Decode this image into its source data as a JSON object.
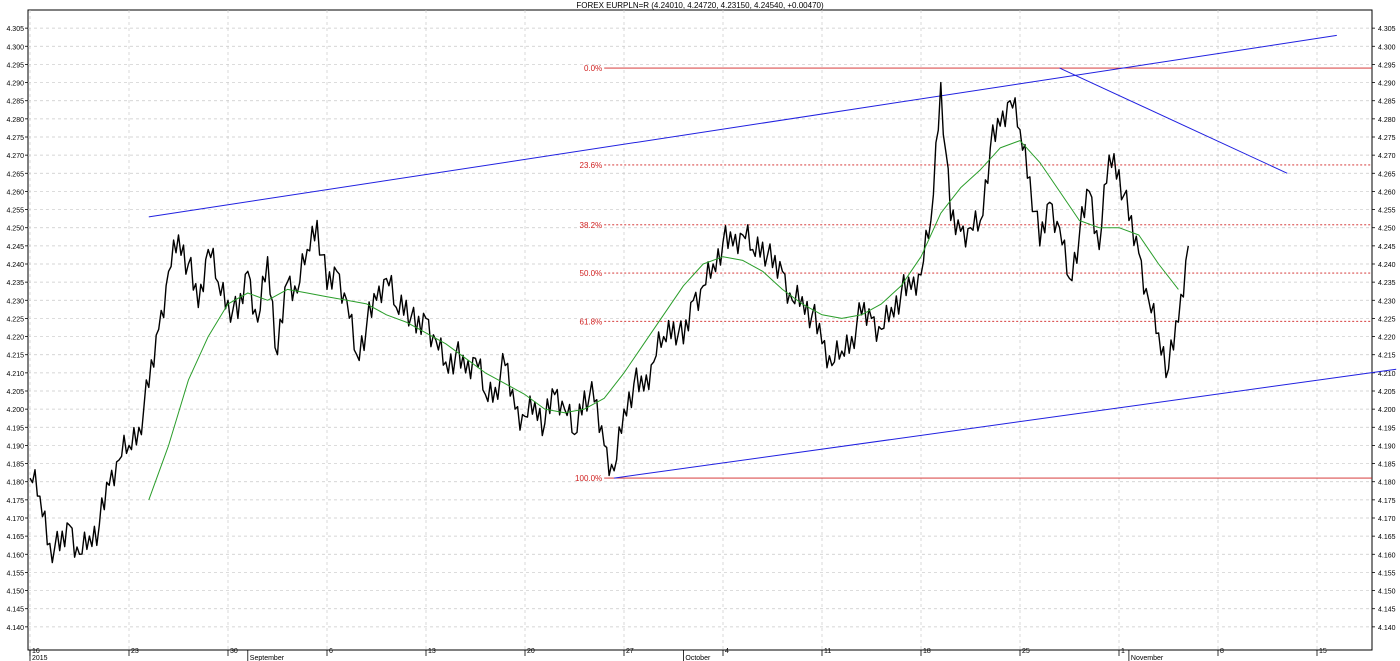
{
  "chart_data": {
    "type": "line",
    "title": "FOREX EURPLN=R (4.24010, 4.24720, 4.23150, 4.24540, +0.00470)",
    "ylim": [
      4.135,
      4.31
    ],
    "y_ticks": [
      "4.140",
      "4.145",
      "4.150",
      "4.155",
      "4.160",
      "4.165",
      "4.170",
      "4.175",
      "4.180",
      "4.185",
      "4.190",
      "4.195",
      "4.200",
      "4.205",
      "4.210",
      "4.215",
      "4.220",
      "4.225",
      "4.230",
      "4.235",
      "4.240",
      "4.245",
      "4.250",
      "4.255",
      "4.260",
      "4.265",
      "4.270",
      "4.275",
      "4.280",
      "4.285",
      "4.290",
      "4.295",
      "4.300",
      "4.305"
    ],
    "x_days": 117,
    "x_ticks": [
      {
        "day": 0,
        "label": "16"
      },
      {
        "day": 10,
        "label": "23"
      },
      {
        "day": 20,
        "label": "30"
      },
      {
        "day": 30,
        "label": "6"
      },
      {
        "day": 40,
        "label": "13"
      },
      {
        "day": 50,
        "label": "20"
      },
      {
        "day": 60,
        "label": "27"
      },
      {
        "day": 70,
        "label": "4"
      },
      {
        "day": 80,
        "label": "11"
      },
      {
        "day": 90,
        "label": "18"
      },
      {
        "day": 100,
        "label": "25"
      },
      {
        "day": 110,
        "label": "1"
      },
      {
        "day": 120,
        "label": "8"
      },
      {
        "day": 130,
        "label": "15"
      }
    ],
    "x_period_labels": [
      {
        "day": 0,
        "label": "2015"
      },
      {
        "day": 22,
        "label": "September"
      },
      {
        "day": 66,
        "label": "October"
      },
      {
        "day": 111,
        "label": "November"
      }
    ],
    "series": [
      {
        "color": "#000000",
        "points": [
          [
            0,
            4.181
          ],
          [
            1,
            4.176
          ],
          [
            2,
            4.163
          ],
          [
            3,
            4.161
          ],
          [
            4,
            4.168
          ],
          [
            5,
            4.16
          ],
          [
            6,
            4.165
          ],
          [
            7,
            4.168
          ],
          [
            8,
            4.179
          ],
          [
            9,
            4.186
          ],
          [
            10,
            4.19
          ],
          [
            11,
            4.195
          ],
          [
            12,
            4.206
          ],
          [
            13,
            4.222
          ],
          [
            14,
            4.238
          ],
          [
            15,
            4.248
          ],
          [
            16,
            4.24
          ],
          [
            17,
            4.228
          ],
          [
            18,
            4.244
          ],
          [
            19,
            4.235
          ],
          [
            20,
            4.23
          ],
          [
            21,
            4.225
          ],
          [
            22,
            4.238
          ],
          [
            23,
            4.224
          ],
          [
            24,
            4.242
          ],
          [
            25,
            4.215
          ],
          [
            26,
            4.235
          ],
          [
            27,
            4.232
          ],
          [
            28,
            4.244
          ],
          [
            29,
            4.252
          ],
          [
            30,
            4.233
          ],
          [
            31,
            4.238
          ],
          [
            32,
            4.23
          ],
          [
            33,
            4.215
          ],
          [
            34,
            4.223
          ],
          [
            35,
            4.23
          ],
          [
            36,
            4.236
          ],
          [
            37,
            4.228
          ],
          [
            38,
            4.23
          ],
          [
            39,
            4.221
          ],
          [
            40,
            4.225
          ],
          [
            41,
            4.219
          ],
          [
            42,
            4.213
          ],
          [
            43,
            4.215
          ],
          [
            44,
            4.21
          ],
          [
            45,
            4.214
          ],
          [
            46,
            4.204
          ],
          [
            47,
            4.206
          ],
          [
            48,
            4.212
          ],
          [
            49,
            4.2
          ],
          [
            50,
            4.198
          ],
          [
            51,
            4.202
          ],
          [
            52,
            4.196
          ],
          [
            53,
            4.204
          ],
          [
            54,
            4.2
          ],
          [
            55,
            4.193
          ],
          [
            56,
            4.205
          ],
          [
            57,
            4.202
          ],
          [
            58,
            4.19
          ],
          [
            59,
            4.183
          ],
          [
            60,
            4.2
          ],
          [
            61,
            4.207
          ],
          [
            62,
            4.205
          ],
          [
            63,
            4.213
          ],
          [
            64,
            4.22
          ],
          [
            65,
            4.224
          ],
          [
            66,
            4.218
          ],
          [
            67,
            4.23
          ],
          [
            68,
            4.234
          ],
          [
            69,
            4.24
          ],
          [
            70,
            4.246
          ],
          [
            71,
            4.245
          ],
          [
            72,
            4.248
          ],
          [
            73,
            4.244
          ],
          [
            74,
            4.246
          ],
          [
            75,
            4.239
          ],
          [
            76,
            4.238
          ],
          [
            77,
            4.23
          ],
          [
            78,
            4.231
          ],
          [
            79,
            4.226
          ],
          [
            80,
            4.218
          ],
          [
            81,
            4.212
          ],
          [
            82,
            4.216
          ],
          [
            83,
            4.22
          ],
          [
            84,
            4.226
          ],
          [
            85,
            4.225
          ],
          [
            86,
            4.222
          ],
          [
            87,
            4.228
          ],
          [
            88,
            4.232
          ],
          [
            89,
            4.233
          ],
          [
            90,
            4.237
          ],
          [
            91,
            4.252
          ],
          [
            92,
            4.29
          ],
          [
            93,
            4.252
          ],
          [
            94,
            4.249
          ],
          [
            95,
            4.25
          ],
          [
            96,
            4.252
          ],
          [
            97,
            4.272
          ],
          [
            98,
            4.278
          ],
          [
            99,
            4.285
          ],
          [
            100,
            4.277
          ],
          [
            101,
            4.264
          ],
          [
            102,
            4.245
          ],
          [
            103,
            4.257
          ],
          [
            104,
            4.25
          ],
          [
            105,
            4.236
          ],
          [
            106,
            4.248
          ],
          [
            107,
            4.26
          ],
          [
            108,
            4.244
          ],
          [
            109,
            4.27
          ],
          [
            110,
            4.266
          ],
          [
            111,
            4.252
          ],
          [
            112,
            4.243
          ],
          [
            113,
            4.23
          ],
          [
            114,
            4.221
          ],
          [
            115,
            4.211
          ],
          [
            116,
            4.224
          ],
          [
            117,
            4.245
          ]
        ]
      },
      {
        "color": "#2a9d2a",
        "points": [
          [
            12,
            4.175
          ],
          [
            14,
            4.19
          ],
          [
            16,
            4.208
          ],
          [
            18,
            4.22
          ],
          [
            20,
            4.229
          ],
          [
            22,
            4.232
          ],
          [
            24,
            4.23
          ],
          [
            26,
            4.233
          ],
          [
            28,
            4.232
          ],
          [
            30,
            4.231
          ],
          [
            32,
            4.23
          ],
          [
            34,
            4.229
          ],
          [
            36,
            4.226
          ],
          [
            38,
            4.224
          ],
          [
            40,
            4.221
          ],
          [
            42,
            4.218
          ],
          [
            44,
            4.214
          ],
          [
            46,
            4.21
          ],
          [
            48,
            4.207
          ],
          [
            50,
            4.204
          ],
          [
            52,
            4.2
          ],
          [
            54,
            4.199
          ],
          [
            56,
            4.2
          ],
          [
            58,
            4.203
          ],
          [
            60,
            4.21
          ],
          [
            62,
            4.218
          ],
          [
            64,
            4.226
          ],
          [
            66,
            4.234
          ],
          [
            68,
            4.24
          ],
          [
            70,
            4.242
          ],
          [
            72,
            4.241
          ],
          [
            74,
            4.238
          ],
          [
            76,
            4.233
          ],
          [
            78,
            4.229
          ],
          [
            80,
            4.226
          ],
          [
            82,
            4.225
          ],
          [
            84,
            4.226
          ],
          [
            86,
            4.229
          ],
          [
            88,
            4.234
          ],
          [
            90,
            4.242
          ],
          [
            92,
            4.254
          ],
          [
            94,
            4.261
          ],
          [
            96,
            4.266
          ],
          [
            98,
            4.272
          ],
          [
            100,
            4.274
          ],
          [
            102,
            4.268
          ],
          [
            104,
            4.26
          ],
          [
            106,
            4.252
          ],
          [
            108,
            4.25
          ],
          [
            110,
            4.25
          ],
          [
            112,
            4.248
          ],
          [
            114,
            4.24
          ],
          [
            116,
            4.233
          ]
        ]
      }
    ],
    "fibonacci": {
      "high": 4.294,
      "low": 4.181,
      "levels": [
        {
          "label": "0.0%",
          "value": 4.294,
          "style": "solid"
        },
        {
          "label": "23.6%",
          "value": 4.2673,
          "style": "dashed"
        },
        {
          "label": "38.2%",
          "value": 4.2508,
          "style": "dashed"
        },
        {
          "label": "50.0%",
          "value": 4.2375,
          "style": "dashed"
        },
        {
          "label": "61.8%",
          "value": 4.2242,
          "style": "dashed"
        },
        {
          "label": "100.0%",
          "value": 4.181,
          "style": "solid"
        }
      ],
      "start_day": 58,
      "color": "#d02020"
    },
    "trendlines": [
      {
        "name": "upper-channel",
        "color": "#2020e0",
        "from": [
          12,
          4.253
        ],
        "to": [
          132,
          4.303
        ]
      },
      {
        "name": "lower-channel",
        "color": "#2020e0",
        "from": [
          59,
          4.181
        ],
        "to": [
          138,
          4.211
        ]
      },
      {
        "name": "descending",
        "color": "#2020e0",
        "from": [
          104,
          4.294
        ],
        "to": [
          127,
          4.265
        ]
      }
    ],
    "grid": true,
    "legend": "none"
  }
}
